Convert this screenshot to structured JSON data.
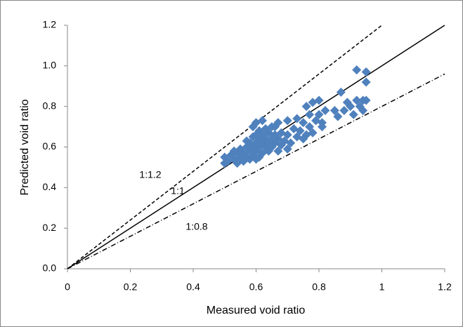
{
  "chart_data": {
    "type": "scatter",
    "xlabel": "Measured void ratio",
    "ylabel": "Predicted void ratio",
    "xlim": [
      0,
      1.2
    ],
    "xticks": [
      0,
      0.2,
      0.4,
      0.6,
      0.8,
      1,
      1.2
    ],
    "ylim": [
      0,
      1.2
    ],
    "yticks": [
      {
        "value": 0,
        "label": "0.0"
      },
      0.2,
      0.4,
      0.6,
      0.8,
      {
        "value": 1,
        "label": "1.0"
      },
      1.2
    ],
    "grid": false,
    "series": [
      {
        "color": "#4f81bd",
        "x": [
          0.5,
          0.5,
          0.51,
          0.52,
          0.53,
          0.54,
          0.54,
          0.55,
          0.55,
          0.56,
          0.56,
          0.57,
          0.57,
          0.58,
          0.58,
          0.58,
          0.59,
          0.59,
          0.59,
          0.59,
          0.6,
          0.6,
          0.6,
          0.6,
          0.61,
          0.61,
          0.61,
          0.61,
          0.62,
          0.62,
          0.62,
          0.62,
          0.63,
          0.63,
          0.63,
          0.64,
          0.64,
          0.64,
          0.65,
          0.65,
          0.65,
          0.66,
          0.66,
          0.67,
          0.67,
          0.67,
          0.68,
          0.68,
          0.69,
          0.7,
          0.7,
          0.7,
          0.71,
          0.72,
          0.73,
          0.73,
          0.74,
          0.75,
          0.75,
          0.76,
          0.76,
          0.77,
          0.77,
          0.78,
          0.78,
          0.79,
          0.8,
          0.8,
          0.81,
          0.81,
          0.82,
          0.85,
          0.86,
          0.87,
          0.88,
          0.89,
          0.9,
          0.91,
          0.92,
          0.92,
          0.93,
          0.94,
          0.94,
          0.95,
          0.95,
          0.95,
          0.6,
          0.57,
          0.53,
          0.66
        ],
        "y": [
          0.52,
          0.55,
          0.53,
          0.56,
          0.54,
          0.52,
          0.57,
          0.55,
          0.59,
          0.53,
          0.57,
          0.55,
          0.6,
          0.54,
          0.58,
          0.62,
          0.56,
          0.6,
          0.65,
          0.7,
          0.58,
          0.62,
          0.66,
          0.72,
          0.55,
          0.6,
          0.64,
          0.68,
          0.57,
          0.62,
          0.66,
          0.73,
          0.6,
          0.64,
          0.69,
          0.58,
          0.62,
          0.67,
          0.6,
          0.64,
          0.7,
          0.62,
          0.66,
          0.58,
          0.64,
          0.72,
          0.61,
          0.67,
          0.63,
          0.59,
          0.66,
          0.73,
          0.62,
          0.69,
          0.65,
          0.74,
          0.68,
          0.64,
          0.72,
          0.66,
          0.8,
          0.7,
          0.76,
          0.67,
          0.82,
          0.73,
          0.76,
          0.83,
          0.72,
          0.7,
          0.78,
          0.78,
          0.75,
          0.87,
          0.78,
          0.82,
          0.8,
          0.76,
          0.83,
          0.98,
          0.8,
          0.83,
          0.78,
          0.92,
          0.97,
          0.83,
          0.54,
          0.63,
          0.58,
          0.7
        ]
      }
    ],
    "lines": [
      {
        "name": "1:1.2",
        "x": [
          0,
          1
        ],
        "y": [
          0,
          1.2
        ],
        "line_style": "dashed",
        "color": "#000000"
      },
      {
        "name": "1:1",
        "x": [
          0,
          1.2
        ],
        "y": [
          0,
          1.2
        ],
        "line_style": "solid",
        "color": "#000000"
      },
      {
        "name": "1:0.8",
        "x": [
          0,
          1.2
        ],
        "y": [
          0,
          0.96
        ],
        "line_style": "dashdot",
        "color": "#000000"
      }
    ]
  }
}
